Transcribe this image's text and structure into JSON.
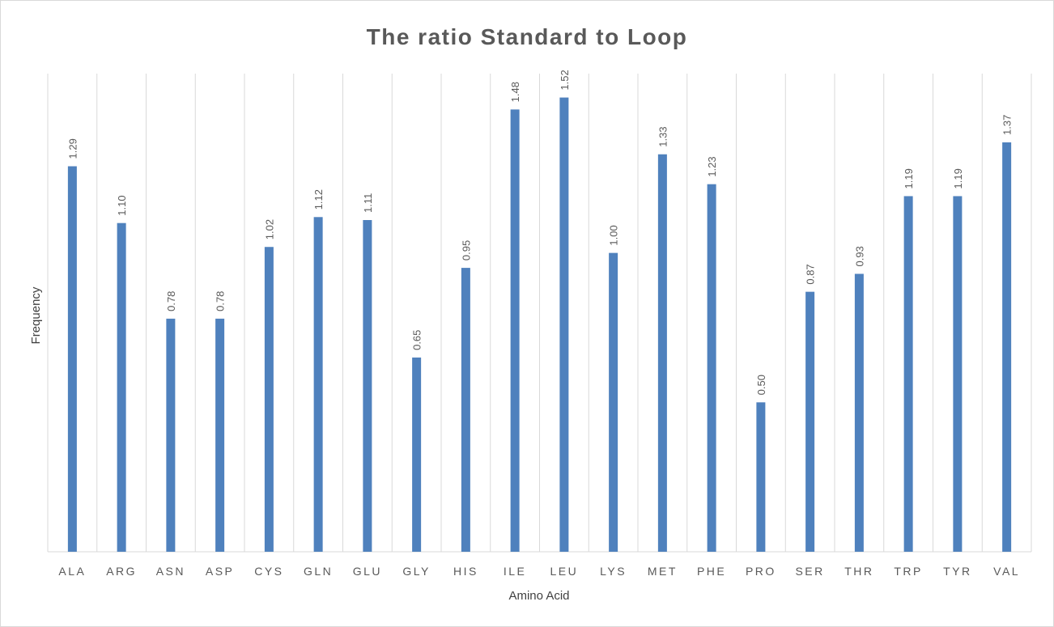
{
  "chart_data": {
    "type": "bar",
    "title": "The ratio Standard to Loop",
    "xlabel": "Amino Acid",
    "ylabel": "Frequency",
    "categories": [
      "ALA",
      "ARG",
      "ASN",
      "ASP",
      "CYS",
      "GLN",
      "GLU",
      "GLY",
      "HIS",
      "ILE",
      "LEU",
      "LYS",
      "MET",
      "PHE",
      "PRO",
      "SER",
      "THR",
      "TRP",
      "TYR",
      "VAL"
    ],
    "values": [
      1.29,
      1.1,
      0.78,
      0.78,
      1.02,
      1.12,
      1.11,
      0.65,
      0.95,
      1.48,
      1.52,
      1.0,
      1.33,
      1.23,
      0.5,
      0.87,
      0.93,
      1.19,
      1.19,
      1.37
    ],
    "data_labels": [
      "1.29",
      "1.10",
      "0.78",
      "0.78",
      "1.02",
      "1.12",
      "1.11",
      "0.65",
      "0.95",
      "1.48",
      "1.52",
      "1.00",
      "1.33",
      "1.23",
      "0.50",
      "0.87",
      "0.93",
      "1.19",
      "1.19",
      "1.37"
    ],
    "ylim": [
      0,
      1.6
    ],
    "grid": "vertical",
    "legend": "none",
    "bar_color": "#4f81bd"
  }
}
